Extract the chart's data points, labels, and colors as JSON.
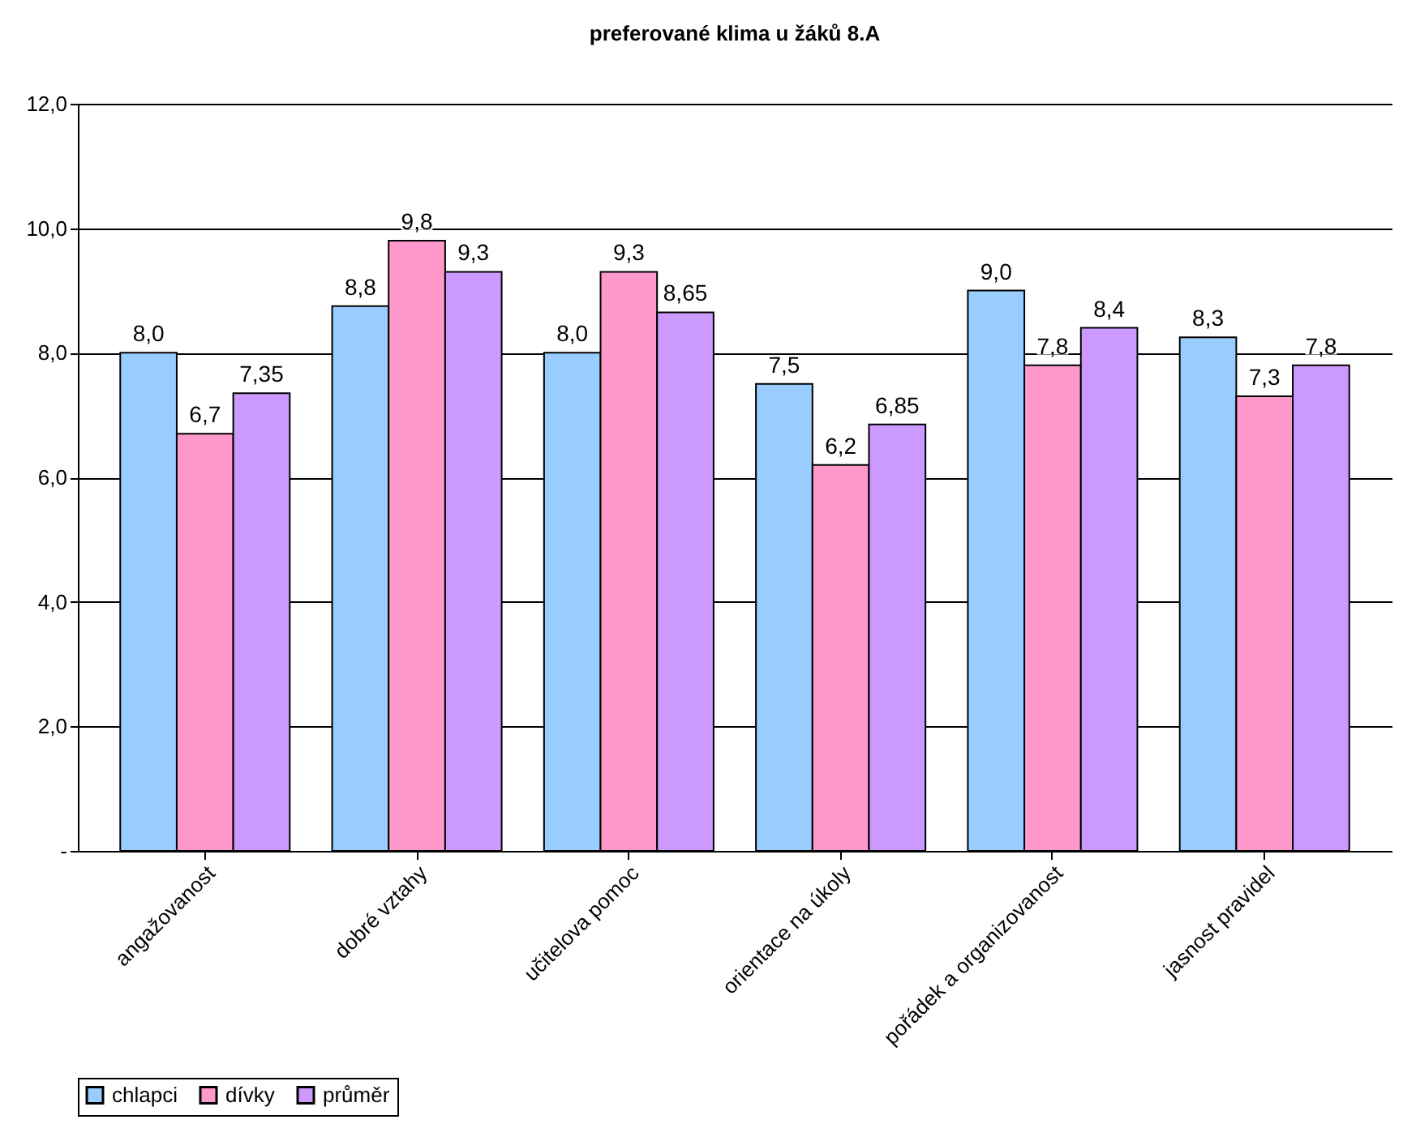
{
  "chart_data": {
    "type": "bar",
    "title": "preferované klima u žáků 8.A",
    "categories": [
      "angažovanost",
      "dobré vztahy",
      "učitelova pomoc",
      "orientace na úkoly",
      "pořádek a organizovanost",
      "jasnost pravidel"
    ],
    "series": [
      {
        "name": "chlapci",
        "color": "#99ccff",
        "values": [
          8.0,
          8.75,
          8.0,
          7.5,
          9.0,
          8.25
        ],
        "value_labels": [
          "8,0",
          "8,8",
          "8,0",
          "7,5",
          "9,0",
          "8,3"
        ]
      },
      {
        "name": "dívky",
        "color": "#ff99cc",
        "values": [
          6.7,
          9.8,
          9.3,
          6.2,
          7.8,
          7.3
        ],
        "value_labels": [
          "6,7",
          "9,8",
          "9,3",
          "6,2",
          "7,8",
          "7,3"
        ]
      },
      {
        "name": "průměr",
        "color": "#cc99ff",
        "values": [
          7.35,
          9.3,
          8.65,
          6.85,
          8.4,
          7.8
        ],
        "value_labels": [
          "7,35",
          "9,3",
          "8,65",
          "6,85",
          "8,4",
          "7,8"
        ]
      }
    ],
    "ylim": [
      0,
      12
    ],
    "yticks": [
      {
        "value": 0,
        "label": "-"
      },
      {
        "value": 2,
        "label": "2,0"
      },
      {
        "value": 4,
        "label": "4,0"
      },
      {
        "value": 6,
        "label": "6,0"
      },
      {
        "value": 8,
        "label": "8,0"
      },
      {
        "value": 10,
        "label": "10,0"
      },
      {
        "value": 12,
        "label": "12,0"
      }
    ],
    "grid": "y",
    "legend": "bottom"
  }
}
